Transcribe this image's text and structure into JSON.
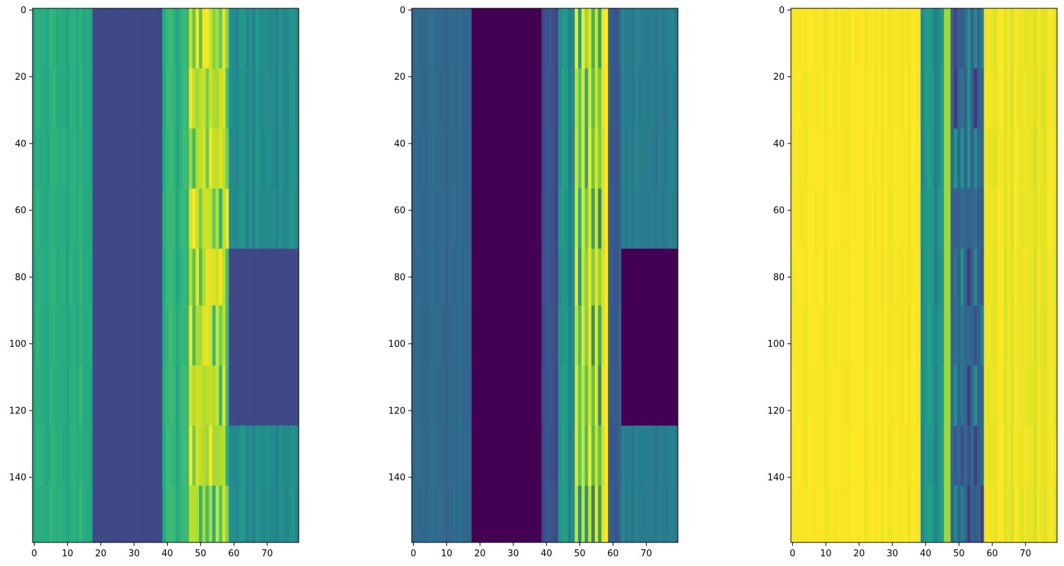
{
  "chart_data": [
    {
      "type": "heatmap",
      "title": "",
      "xlabel": "",
      "ylabel": "",
      "colormap": "viridis",
      "xlim": [
        -0.5,
        79.5
      ],
      "ylim": [
        159.5,
        -0.5
      ],
      "x_ticks": [
        0,
        10,
        20,
        30,
        40,
        50,
        60,
        70
      ],
      "y_ticks": [
        0,
        20,
        40,
        60,
        80,
        100,
        120,
        140
      ],
      "row_segments": [
        0,
        18,
        36,
        54,
        72,
        89,
        107,
        125,
        143,
        160
      ],
      "column_bands": [
        {
          "x0": 0,
          "x1": 18,
          "level": 0.62,
          "stripe": 0.04
        },
        {
          "x0": 18,
          "x1": 39,
          "level": 0.22
        },
        {
          "x0": 39,
          "x1": 47,
          "level": 0.64,
          "stripe": 0.05
        },
        {
          "x0": 47,
          "x1": 59,
          "alternate": [
            1.0,
            0.0,
            1.0,
            0.62
          ]
        },
        {
          "x0": 59,
          "x1": 80,
          "level": 0.48,
          "stripe": 0.05,
          "block_rows": [
            72,
            125
          ],
          "block_level": 0.22
        }
      ]
    },
    {
      "type": "heatmap",
      "title": "",
      "xlabel": "",
      "ylabel": "",
      "colormap": "viridis",
      "xlim": [
        -0.5,
        79.5
      ],
      "ylim": [
        159.5,
        -0.5
      ],
      "x_ticks": [
        0,
        10,
        20,
        30,
        40,
        50,
        60,
        70
      ],
      "y_ticks": [
        0,
        20,
        40,
        60,
        80,
        100,
        120,
        140
      ],
      "row_segments": [
        0,
        18,
        36,
        54,
        72,
        89,
        107,
        125,
        143,
        160
      ],
      "column_bands": [
        {
          "x0": 0,
          "x1": 18,
          "level": 0.34,
          "stripe": 0.03
        },
        {
          "x0": 18,
          "x1": 39,
          "level": 0.0
        },
        {
          "x0": 39,
          "x1": 44,
          "level": 0.24,
          "stripe": 0.04
        },
        {
          "x0": 44,
          "x1": 49,
          "level": 0.5,
          "stripe": 0.08
        },
        {
          "x0": 49,
          "x1": 58,
          "alternate": [
            1.0,
            0.4,
            0.85,
            0.45
          ]
        },
        {
          "x0": 58,
          "x1": 59,
          "level": 1.0
        },
        {
          "x0": 59,
          "x1": 63,
          "level": 0.28,
          "stripe": 0.05
        },
        {
          "x0": 63,
          "x1": 80,
          "level": 0.42,
          "stripe": 0.03,
          "block_rows": [
            72,
            125
          ],
          "block_level": 0.0
        }
      ]
    },
    {
      "type": "heatmap",
      "title": "",
      "xlabel": "",
      "ylabel": "",
      "colormap": "viridis",
      "xlim": [
        -0.5,
        79.5
      ],
      "ylim": [
        159.5,
        -0.5
      ],
      "x_ticks": [
        0,
        10,
        20,
        30,
        40,
        50,
        60,
        70
      ],
      "y_ticks": [
        0,
        20,
        40,
        60,
        80,
        100,
        120,
        140
      ],
      "row_segments": [
        0,
        18,
        36,
        54,
        72,
        89,
        107,
        125,
        143,
        160
      ],
      "column_bands": [
        {
          "x0": 0,
          "x1": 39,
          "level": 0.99,
          "stripe": 0.02
        },
        {
          "x0": 39,
          "x1": 46,
          "level": 0.5,
          "stripe": 0.08
        },
        {
          "x0": 46,
          "x1": 48,
          "level": 0.85
        },
        {
          "x0": 48,
          "x1": 58,
          "alternate": [
            0.3,
            0.6,
            0.15,
            0.55
          ]
        },
        {
          "x0": 58,
          "x1": 80,
          "level": 0.97,
          "stripe": 0.03
        }
      ]
    }
  ]
}
